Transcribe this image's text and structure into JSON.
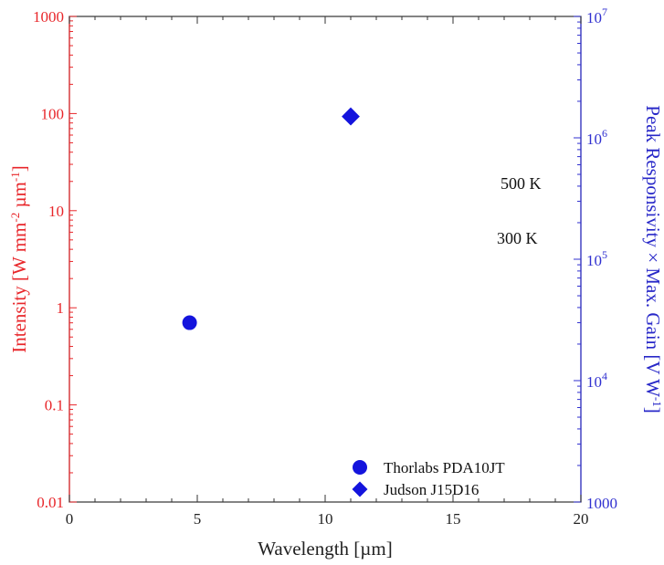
{
  "chart_data": {
    "type": "line",
    "xlabel": "Wavelength [µm]",
    "ylabel_left": "Intensity [W mm-2 µm-1]",
    "ylabel_right": "Peak Responsivity × Max. Gain [V W-1]",
    "xlim": [
      0,
      20
    ],
    "ylim_left": [
      0.01,
      1000
    ],
    "ylim_right": [
      1000,
      10000000
    ],
    "log_y": true,
    "x_ticks": [
      "0",
      "5",
      "10",
      "15",
      "20"
    ],
    "y_ticks_left": [
      "0.01",
      "0.1",
      "1",
      "10",
      "100",
      "1000"
    ],
    "y_ticks_right": [
      {
        "base": "1000",
        "exp": ""
      },
      {
        "base": "10",
        "exp": "4"
      },
      {
        "base": "10",
        "exp": "5"
      },
      {
        "base": "10",
        "exp": "6"
      },
      {
        "base": "10",
        "exp": "7"
      }
    ],
    "colors": {
      "left_axis": "#e8262a",
      "right_axis": "#2828c8",
      "curve": "#ee2a2a",
      "marker": "#1414dd"
    },
    "curves": [
      {
        "label": "500 K",
        "temperature": 500,
        "style": "dashed"
      },
      {
        "label": "300 K",
        "temperature": 300,
        "style": "solid"
      }
    ],
    "points": [
      {
        "name": "Thorlabs PDA10JT",
        "x": 4.7,
        "y_right": 30000,
        "marker": "circle"
      },
      {
        "name": "Judson J15D16",
        "x": 11.0,
        "y_right": 1500000,
        "marker": "diamond"
      }
    ],
    "legend_position": "bottom-right"
  }
}
